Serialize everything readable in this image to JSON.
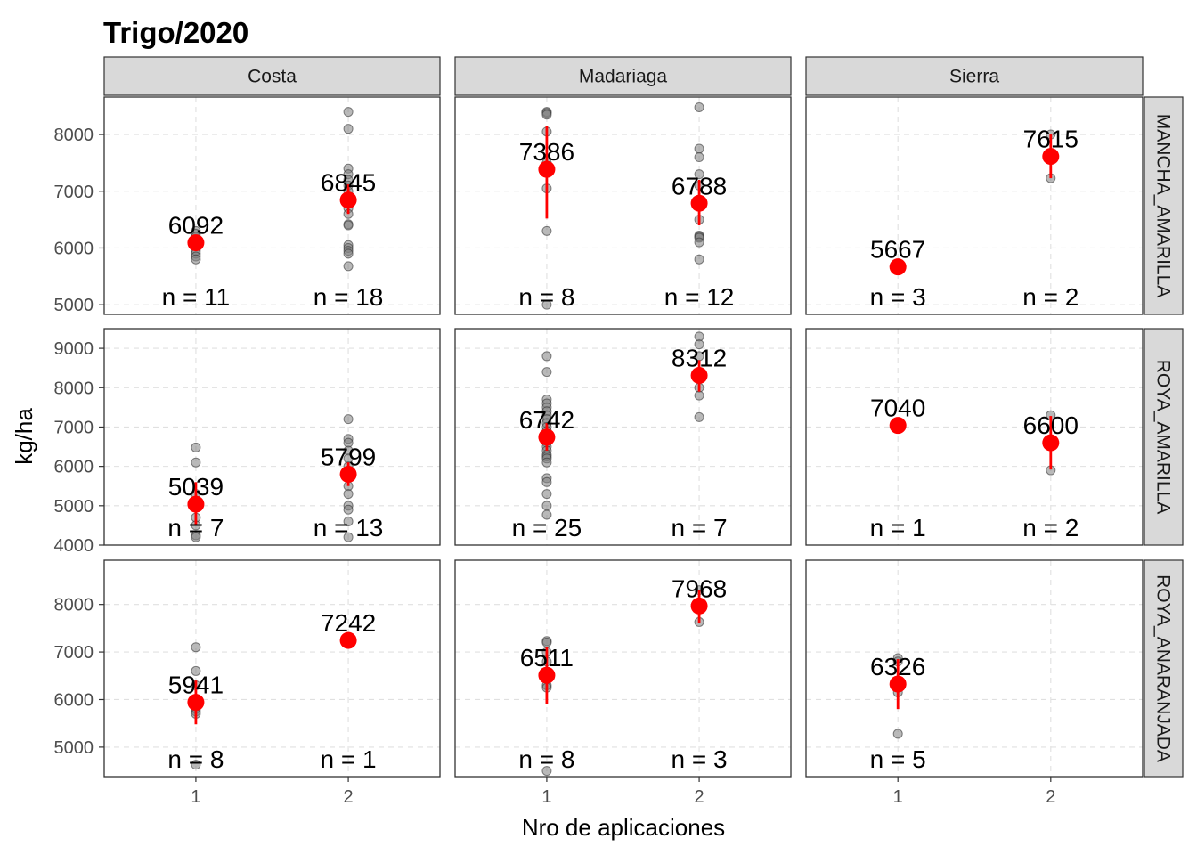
{
  "chart_data": {
    "type": "scatter",
    "title": "Trigo/2020",
    "xlabel": "Nro de aplicaciones",
    "ylabel": "kg/ha",
    "x_categories": [
      "1",
      "2"
    ],
    "columns": [
      "Costa",
      "Madariaga",
      "Sierra"
    ],
    "rows": [
      "MANCHA_AMARILLA",
      "ROYA_AMARILLA",
      "ROYA_ANARANJADA"
    ],
    "row_scales": [
      {
        "ylim": [
          4830,
          8660
        ],
        "ticks": [
          5000,
          6000,
          7000,
          8000
        ]
      },
      {
        "ylim": [
          4000,
          9500
        ],
        "ticks": [
          4000,
          5000,
          6000,
          7000,
          8000,
          9000
        ]
      },
      {
        "ylim": [
          4380,
          8930
        ],
        "ticks": [
          5000,
          6000,
          7000,
          8000
        ]
      }
    ],
    "point_color": "#808080",
    "mean_color": "#ff0000",
    "panels": [
      {
        "row": 0,
        "col": 0,
        "groups": [
          {
            "x": 1,
            "mean": 6092,
            "mean_label": "6092",
            "n_label": "n = 11",
            "err": [
              6040,
              6150
            ],
            "points": [
              6300,
              6250,
              6200,
              6150,
              6100,
              6080,
              6050,
              5950,
              5900,
              5850,
              5800
            ]
          },
          {
            "x": 2,
            "mean": 6845,
            "mean_label": "6845",
            "n_label": "n = 18",
            "err": [
              6600,
              7120
            ],
            "points": [
              8400,
              8100,
              7400,
              7300,
              7200,
              7100,
              7000,
              6900,
              6800,
              6700,
              6600,
              6420,
              6400,
              6050,
              6000,
              5950,
              5900,
              5680
            ]
          }
        ]
      },
      {
        "row": 0,
        "col": 1,
        "groups": [
          {
            "x": 1,
            "mean": 7386,
            "mean_label": "7386",
            "n_label": "n = 8",
            "err": [
              6520,
              8150
            ],
            "points": [
              8400,
              8380,
              8350,
              8050,
              7500,
              7050,
              6300,
              5000
            ]
          },
          {
            "x": 2,
            "mean": 6788,
            "mean_label": "6788",
            "n_label": "n = 12",
            "err": [
              6400,
              7200
            ],
            "points": [
              8480,
              7750,
              7600,
              7300,
              7100,
              6800,
              6500,
              6220,
              6200,
              6180,
              6100,
              5800
            ]
          }
        ]
      },
      {
        "row": 0,
        "col": 2,
        "groups": [
          {
            "x": 1,
            "mean": 5667,
            "mean_label": "5667",
            "n_label": "n = 3",
            "err": [
              5630,
              5700
            ],
            "points": [
              5700,
              5667,
              5630
            ]
          },
          {
            "x": 2,
            "mean": 7615,
            "mean_label": "7615",
            "n_label": "n = 2",
            "err": [
              7230,
              8000
            ],
            "points": [
              8000,
              7230
            ]
          }
        ]
      },
      {
        "row": 1,
        "col": 0,
        "groups": [
          {
            "x": 1,
            "mean": 5039,
            "mean_label": "5039",
            "n_label": "n = 7",
            "err": [
              4500,
              5600
            ],
            "points": [
              6480,
              6100,
              5300,
              4700,
              4500,
              4250,
              4200
            ]
          },
          {
            "x": 2,
            "mean": 5799,
            "mean_label": "5799",
            "n_label": "n = 13",
            "err": [
              5500,
              6100
            ],
            "points": [
              7200,
              6700,
              6600,
              6400,
              6200,
              6000,
              5800,
              5500,
              5300,
              5000,
              4900,
              4600,
              4200
            ]
          }
        ]
      },
      {
        "row": 1,
        "col": 1,
        "groups": [
          {
            "x": 1,
            "mean": 6742,
            "mean_label": "6742",
            "n_label": "n = 25",
            "err": [
              6400,
              7100
            ],
            "points": [
              8800,
              8400,
              7700,
              7600,
              7500,
              7400,
              7300,
              7200,
              7100,
              7000,
              6900,
              6800,
              6700,
              6600,
              6500,
              6400,
              6300,
              6250,
              6200,
              6100,
              5700,
              5600,
              5300,
              5000,
              4770
            ]
          },
          {
            "x": 2,
            "mean": 8312,
            "mean_label": "8312",
            "n_label": "n = 7",
            "err": [
              7900,
              8700
            ],
            "points": [
              9300,
              9100,
              8800,
              8300,
              8000,
              7800,
              7250
            ]
          }
        ]
      },
      {
        "row": 1,
        "col": 2,
        "groups": [
          {
            "x": 1,
            "mean": 7040,
            "mean_label": "7040",
            "n_label": "n = 1",
            "err": [
              7040,
              7040
            ],
            "points": [
              7040
            ]
          },
          {
            "x": 2,
            "mean": 6600,
            "mean_label": "6600",
            "n_label": "n = 2",
            "err": [
              5920,
              7280
            ],
            "points": [
              7300,
              5900
            ]
          }
        ]
      },
      {
        "row": 2,
        "col": 0,
        "groups": [
          {
            "x": 1,
            "mean": 5941,
            "mean_label": "5941",
            "n_label": "n = 8",
            "err": [
              5480,
              6400
            ],
            "points": [
              7100,
              6600,
              6300,
              5900,
              5800,
              5750,
              5700,
              4630
            ]
          },
          {
            "x": 2,
            "mean": 7242,
            "mean_label": "7242",
            "n_label": "n = 1",
            "err": [
              7242,
              7242
            ],
            "points": [
              7242
            ]
          }
        ]
      },
      {
        "row": 2,
        "col": 1,
        "groups": [
          {
            "x": 1,
            "mean": 6511,
            "mean_label": "6511",
            "n_label": "n = 8",
            "err": [
              5900,
              7100
            ],
            "points": [
              7230,
              7200,
              7000,
              6800,
              6500,
              6300,
              6250,
              4500
            ]
          },
          {
            "x": 2,
            "mean": 7968,
            "mean_label": "7968",
            "n_label": "n = 3",
            "err": [
              7600,
              8300
            ],
            "points": [
              8300,
              8000,
              7630
            ]
          }
        ]
      },
      {
        "row": 2,
        "col": 2,
        "groups": [
          {
            "x": 1,
            "mean": 6326,
            "mean_label": "6326",
            "n_label": "n = 5",
            "err": [
              5800,
              6850
            ],
            "points": [
              6870,
              6800,
              6400,
              6150,
              5280
            ]
          }
        ]
      }
    ]
  }
}
